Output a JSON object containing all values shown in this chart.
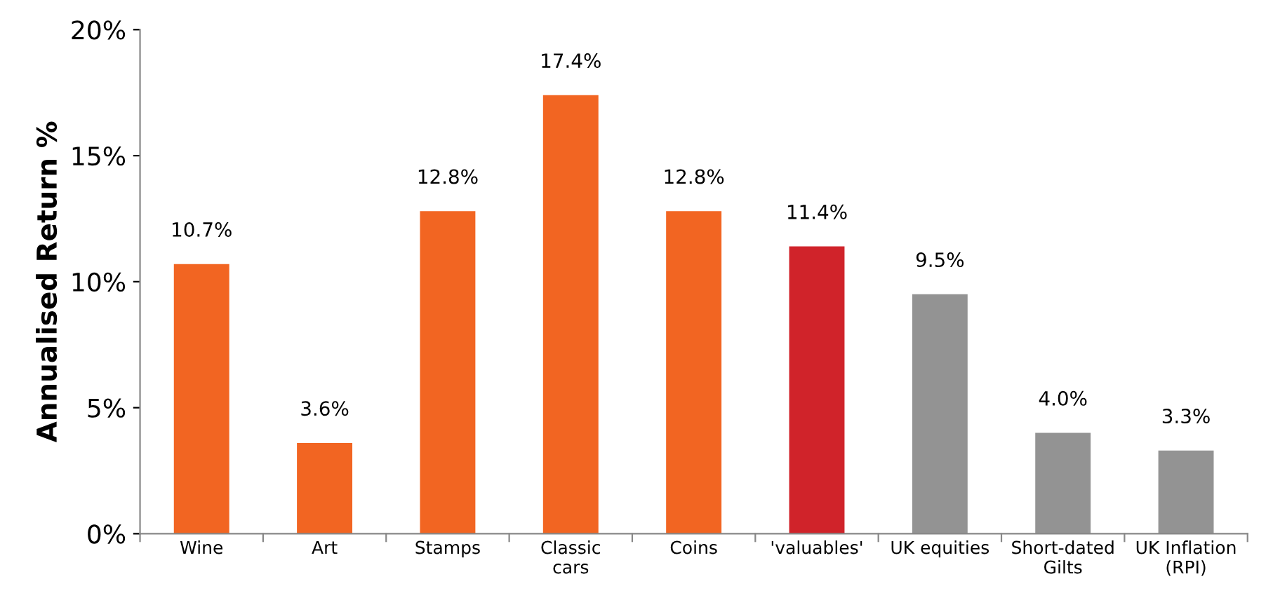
{
  "chart_data": {
    "type": "bar",
    "ylabel": "Annualised Return %",
    "categories": [
      "Wine",
      "Art",
      "Stamps",
      "Classic cars",
      "Coins",
      "'valuables'",
      "UK equities",
      "Short-dated Gilts",
      "UK Inflation (RPI)"
    ],
    "values": [
      10.7,
      3.6,
      12.8,
      17.4,
      12.8,
      11.4,
      9.5,
      4.0,
      3.3
    ],
    "colors": [
      "#f26522",
      "#f26522",
      "#f26522",
      "#f26522",
      "#f26522",
      "#d0232a",
      "#939393",
      "#939393",
      "#939393"
    ],
    "value_labels": [
      "10.7%",
      "3.6%",
      "12.8%",
      "17.4%",
      "12.8%",
      "11.4%",
      "9.5%",
      "4.0%",
      "3.3%"
    ],
    "ylim": [
      0,
      20
    ],
    "yticks": [
      {
        "value": 0,
        "label": "0%"
      },
      {
        "value": 5,
        "label": "5%"
      },
      {
        "value": 10,
        "label": "10%"
      },
      {
        "value": 15,
        "label": "15%"
      },
      {
        "value": 20,
        "label": "20%"
      }
    ],
    "grid": false,
    "legend": false
  }
}
